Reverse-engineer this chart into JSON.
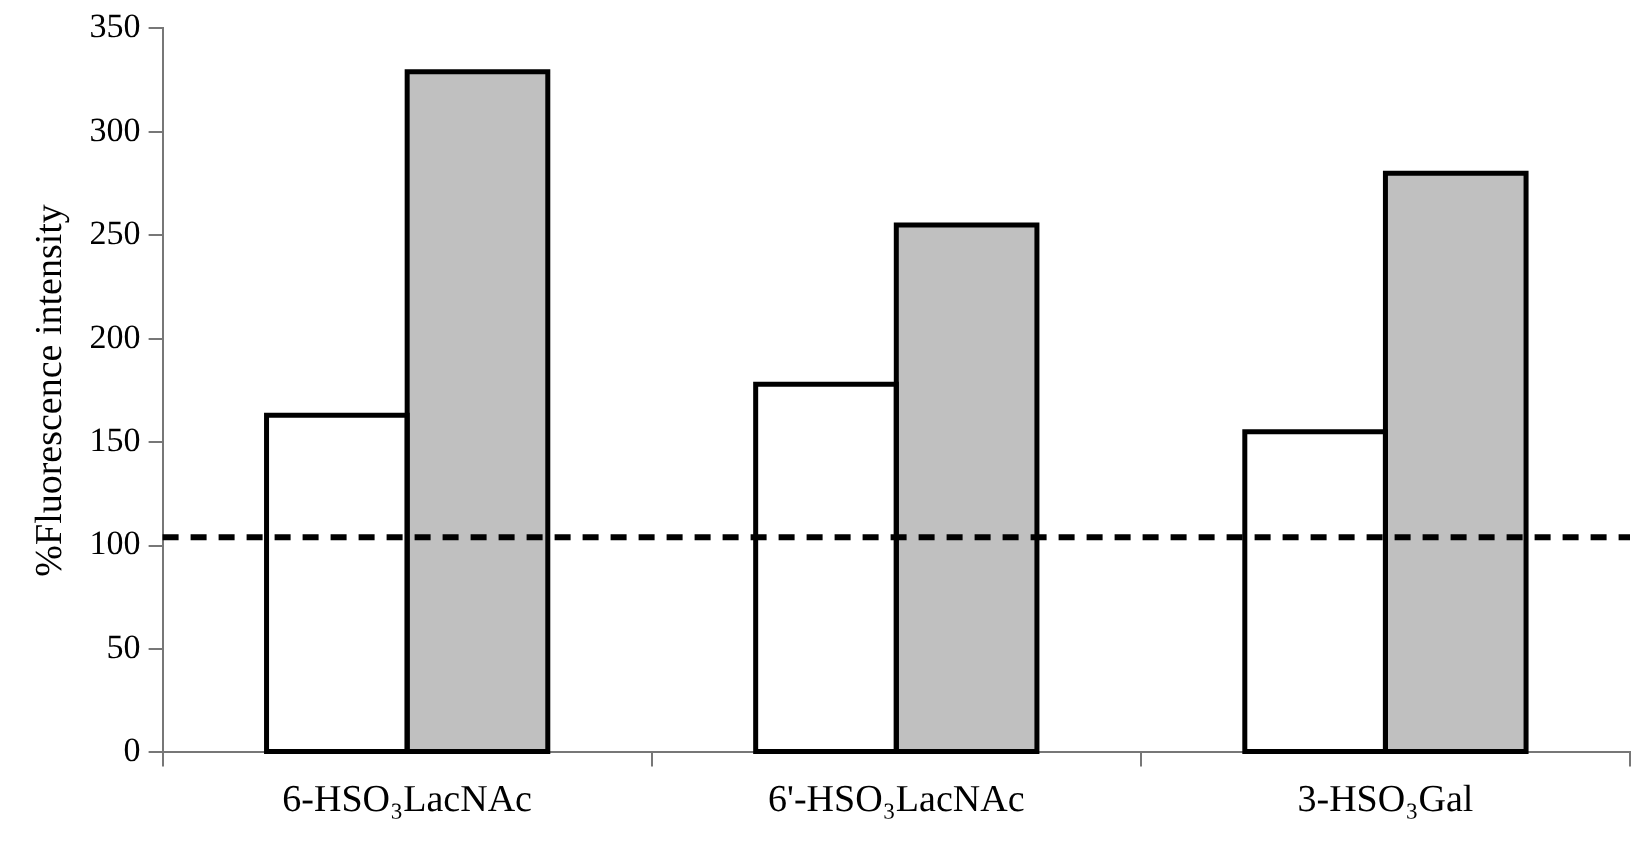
{
  "chart_data": {
    "type": "bar",
    "ylabel": "%Fluorescence intensity",
    "categories": [
      "6-HSO₃LacNAc",
      "6'-HSO₃LacNAc",
      "3-HSO₃Gal"
    ],
    "series": [
      {
        "color": "#ffffff",
        "values": [
          163,
          178,
          155
        ]
      },
      {
        "color": "#c0c0c0",
        "values": [
          329,
          255,
          280
        ]
      }
    ],
    "ylim": [
      0,
      350
    ],
    "yticks": [
      0,
      50,
      100,
      150,
      200,
      250,
      300,
      350
    ],
    "grid": false,
    "legend": false,
    "ref_lines": [
      {
        "axis": "y",
        "value": 104,
        "line_style": "dashed",
        "color": "#000000"
      }
    ]
  }
}
